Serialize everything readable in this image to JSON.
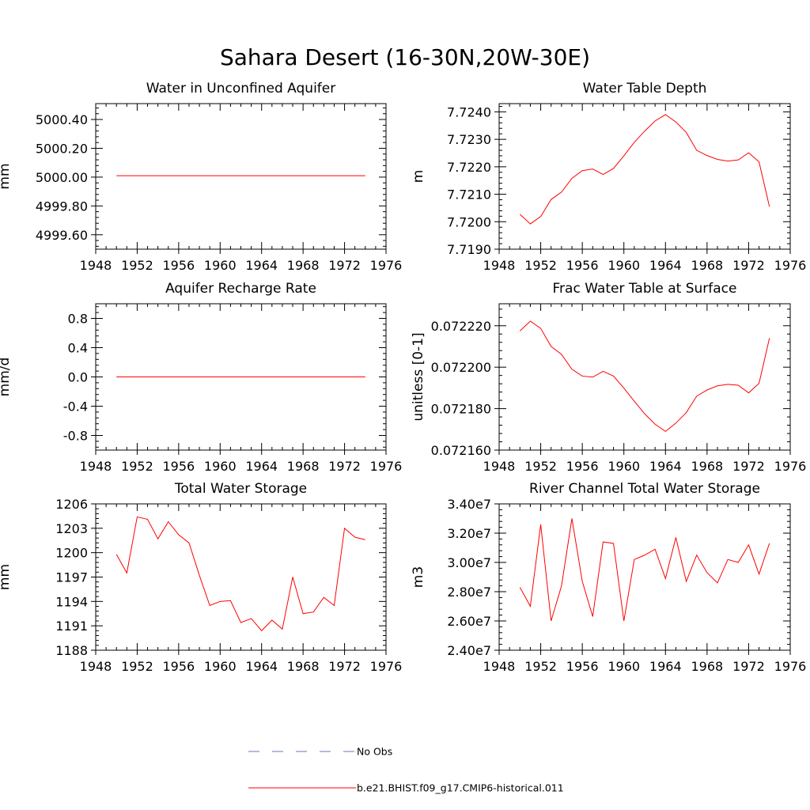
{
  "figure": {
    "title": "Sahara Desert (16-30N,20W-30E)",
    "series_color": "#ff0000",
    "obs_color": "#6677bb"
  },
  "legend": {
    "obs_label": "No Obs",
    "model_label": "b.e21.BHIST.f09_g17.CMIP6-historical.011"
  },
  "chart_data": [
    {
      "type": "line",
      "title": "Water in Unconfined Aquifer",
      "ylabel": "mm",
      "xlabel": "",
      "xlim": [
        1948,
        1976
      ],
      "ylim": [
        4999.5,
        5000.51
      ],
      "xticks": [
        "1948",
        "1952",
        "1956",
        "1960",
        "1964",
        "1968",
        "1972",
        "1976"
      ],
      "yticks": [
        {
          "v": 4999.6,
          "t": "4999.60"
        },
        {
          "v": 4999.8,
          "t": "4999.80"
        },
        {
          "v": 5000.0,
          "t": "5000.00"
        },
        {
          "v": 5000.2,
          "t": "5000.20"
        },
        {
          "v": 5000.4,
          "t": "5000.40"
        }
      ],
      "x": [
        1950,
        1951,
        1952,
        1953,
        1954,
        1955,
        1956,
        1957,
        1958,
        1959,
        1960,
        1961,
        1962,
        1963,
        1964,
        1965,
        1966,
        1967,
        1968,
        1969,
        1970,
        1971,
        1972,
        1973,
        1974
      ],
      "series": [
        {
          "values": [
            5000.01,
            5000.01,
            5000.01,
            5000.01,
            5000.01,
            5000.01,
            5000.01,
            5000.01,
            5000.01,
            5000.01,
            5000.01,
            5000.01,
            5000.01,
            5000.01,
            5000.01,
            5000.01,
            5000.01,
            5000.01,
            5000.01,
            5000.01,
            5000.01,
            5000.01,
            5000.01,
            5000.01,
            5000.01
          ]
        }
      ]
    },
    {
      "type": "line",
      "title": "Water Table Depth",
      "ylabel": "m",
      "xlabel": "",
      "xlim": [
        1948,
        1976
      ],
      "ylim": [
        7.719,
        7.7243
      ],
      "xticks": [
        "1948",
        "1952",
        "1956",
        "1960",
        "1964",
        "1968",
        "1972",
        "1976"
      ],
      "yticks": [
        {
          "v": 7.719,
          "t": "7.7190"
        },
        {
          "v": 7.72,
          "t": "7.7200"
        },
        {
          "v": 7.721,
          "t": "7.7210"
        },
        {
          "v": 7.722,
          "t": "7.7220"
        },
        {
          "v": 7.723,
          "t": "7.7230"
        },
        {
          "v": 7.724,
          "t": "7.7240"
        }
      ],
      "x": [
        1950,
        1951,
        1952,
        1953,
        1954,
        1955,
        1956,
        1957,
        1958,
        1959,
        1960,
        1961,
        1962,
        1963,
        1964,
        1965,
        1966,
        1967,
        1968,
        1969,
        1970,
        1971,
        1972,
        1973,
        1974
      ],
      "series": [
        {
          "values": [
            7.72027,
            7.71992,
            7.72019,
            7.72081,
            7.72108,
            7.72158,
            7.72186,
            7.72192,
            7.72172,
            7.72194,
            7.7224,
            7.72289,
            7.7233,
            7.72367,
            7.7239,
            7.72363,
            7.72325,
            7.7226,
            7.72241,
            7.72227,
            7.72221,
            7.72225,
            7.72251,
            7.72218,
            7.72055
          ]
        }
      ]
    },
    {
      "type": "line",
      "title": "Aquifer Recharge Rate",
      "ylabel": "mm/d",
      "xlabel": "",
      "xlim": [
        1948,
        1976
      ],
      "ylim": [
        -1.0,
        1.0
      ],
      "xticks": [
        "1948",
        "1952",
        "1956",
        "1960",
        "1964",
        "1968",
        "1972",
        "1976"
      ],
      "yticks": [
        {
          "v": -0.8,
          "t": "-0.8"
        },
        {
          "v": -0.4,
          "t": "-0.4"
        },
        {
          "v": 0.0,
          "t": "0.0"
        },
        {
          "v": 0.4,
          "t": "0.4"
        },
        {
          "v": 0.8,
          "t": "0.8"
        }
      ],
      "x": [
        1950,
        1951,
        1952,
        1953,
        1954,
        1955,
        1956,
        1957,
        1958,
        1959,
        1960,
        1961,
        1962,
        1963,
        1964,
        1965,
        1966,
        1967,
        1968,
        1969,
        1970,
        1971,
        1972,
        1973,
        1974
      ],
      "series": [
        {
          "values": [
            0,
            0,
            0,
            0,
            0,
            0,
            0,
            0,
            0,
            0,
            0,
            0,
            0,
            0,
            0,
            0,
            0,
            0,
            0,
            0,
            0,
            0,
            0,
            0,
            0
          ]
        }
      ]
    },
    {
      "type": "line",
      "title": "Frac Water Table at Surface",
      "ylabel": "unitless [0-1]",
      "xlabel": "",
      "xlim": [
        1948,
        1976
      ],
      "ylim": [
        0.07216,
        0.0722306
      ],
      "xticks": [
        "1948",
        "1952",
        "1956",
        "1960",
        "1964",
        "1968",
        "1972",
        "1976"
      ],
      "yticks": [
        {
          "v": 0.07216,
          "t": "0.072160"
        },
        {
          "v": 0.07218,
          "t": "0.072180"
        },
        {
          "v": 0.0722,
          "t": "0.072200"
        },
        {
          "v": 0.07222,
          "t": "0.072220"
        }
      ],
      "x": [
        1950,
        1951,
        1952,
        1953,
        1954,
        1955,
        1956,
        1957,
        1958,
        1959,
        1960,
        1961,
        1962,
        1963,
        1964,
        1965,
        1966,
        1967,
        1968,
        1969,
        1970,
        1971,
        1972,
        1973,
        1974
      ],
      "series": [
        {
          "values": [
            0.0722175,
            0.0722222,
            0.0722187,
            0.07221,
            0.0722062,
            0.072199,
            0.0721957,
            0.0721952,
            0.072198,
            0.0721957,
            0.0721899,
            0.0721836,
            0.0721775,
            0.0721725,
            0.072169,
            0.072173,
            0.0721781,
            0.072186,
            0.072189,
            0.072191,
            0.0721917,
            0.0721913,
            0.0721876,
            0.0721922,
            0.072214
          ]
        }
      ]
    },
    {
      "type": "line",
      "title": "Total Water Storage",
      "ylabel": "mm",
      "xlabel": "",
      "xlim": [
        1948,
        1976
      ],
      "ylim": [
        1188,
        1206
      ],
      "xticks": [
        "1948",
        "1952",
        "1956",
        "1960",
        "1964",
        "1968",
        "1972",
        "1976"
      ],
      "yticks": [
        {
          "v": 1188,
          "t": "1188"
        },
        {
          "v": 1191,
          "t": "1191"
        },
        {
          "v": 1194,
          "t": "1194"
        },
        {
          "v": 1197,
          "t": "1197"
        },
        {
          "v": 1200,
          "t": "1200"
        },
        {
          "v": 1203,
          "t": "1203"
        },
        {
          "v": 1206,
          "t": "1206"
        }
      ],
      "x": [
        1950,
        1951,
        1952,
        1953,
        1954,
        1955,
        1956,
        1957,
        1958,
        1959,
        1960,
        1961,
        1962,
        1963,
        1964,
        1965,
        1966,
        1967,
        1968,
        1969,
        1970,
        1971,
        1972,
        1973,
        1974
      ],
      "series": [
        {
          "values": [
            1199.8,
            1197.5,
            1204.4,
            1204.1,
            1201.7,
            1203.8,
            1202.2,
            1201.2,
            1197.2,
            1193.5,
            1194.0,
            1194.1,
            1191.4,
            1191.9,
            1190.4,
            1191.7,
            1190.6,
            1197.0,
            1192.5,
            1192.7,
            1194.5,
            1193.5,
            1203.0,
            1201.9,
            1201.6
          ]
        }
      ]
    },
    {
      "type": "line",
      "title": "River Channel Total Water Storage",
      "ylabel": "m3",
      "xlabel": "",
      "xlim": [
        1948,
        1976
      ],
      "ylim": [
        24000000.0,
        34000000.0
      ],
      "xticks": [
        "1948",
        "1952",
        "1956",
        "1960",
        "1964",
        "1968",
        "1972",
        "1976"
      ],
      "yticks": [
        {
          "v": 24000000.0,
          "t": "2.40e7"
        },
        {
          "v": 26000000.0,
          "t": "2.60e7"
        },
        {
          "v": 28000000.0,
          "t": "2.80e7"
        },
        {
          "v": 30000000.0,
          "t": "3.00e7"
        },
        {
          "v": 32000000.0,
          "t": "3.20e7"
        },
        {
          "v": 34000000.0,
          "t": "3.40e7"
        }
      ],
      "x": [
        1950,
        1951,
        1952,
        1953,
        1954,
        1955,
        1956,
        1957,
        1958,
        1959,
        1960,
        1961,
        1962,
        1963,
        1964,
        1965,
        1966,
        1967,
        1968,
        1969,
        1970,
        1971,
        1972,
        1973,
        1974
      ],
      "series": [
        {
          "values": [
            28300000.0,
            27000000.0,
            32600000.0,
            26000000.0,
            28400000.0,
            33000000.0,
            28700000.0,
            26300000.0,
            31400000.0,
            31300000.0,
            26000000.0,
            30200000.0,
            30500000.0,
            30900000.0,
            28900000.0,
            31700000.0,
            28700000.0,
            30500000.0,
            29300000.0,
            28600000.0,
            30200000.0,
            30000000.0,
            31200000.0,
            29200000.0,
            31300000.0
          ]
        }
      ]
    }
  ]
}
